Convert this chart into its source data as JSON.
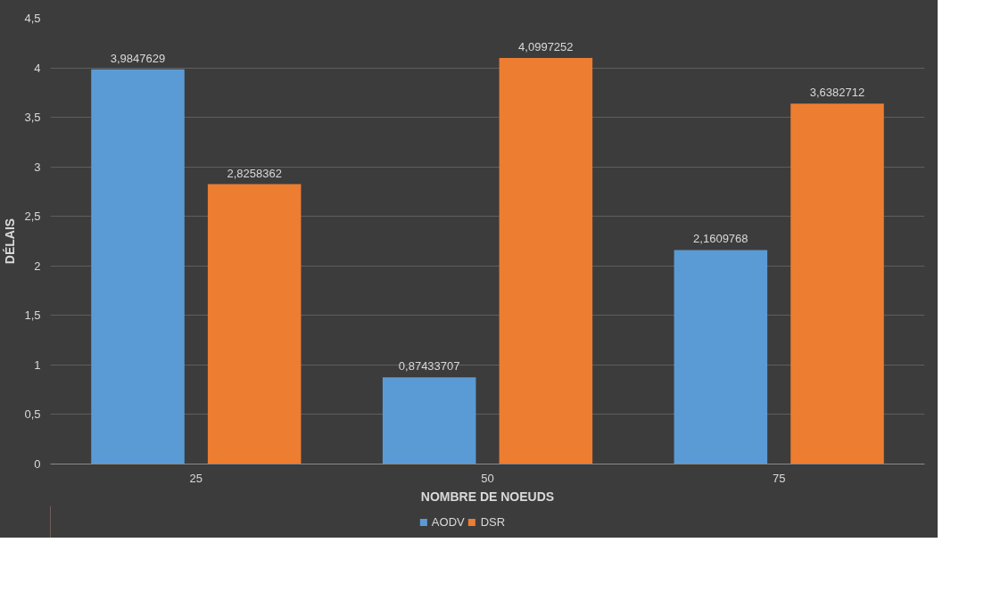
{
  "chart_data": {
    "type": "bar",
    "xlabel": "NOMBRE DE NOEUDS",
    "ylabel": "DÉLAIS",
    "categories": [
      "25",
      "50",
      "75"
    ],
    "series": [
      {
        "name": "AODV",
        "color": "#5b9bd5",
        "values": [
          3.9847629,
          0.87433707,
          2.1609768
        ],
        "value_labels": [
          "3,9847629",
          "0,87433707",
          "2,1609768"
        ]
      },
      {
        "name": "DSR",
        "color": "#ed7d31",
        "values": [
          2.8258362,
          4.0997252,
          3.6382712
        ],
        "value_labels": [
          "2,8258362",
          "4,0997252",
          "3,6382712"
        ]
      }
    ],
    "ylim": [
      0,
      4.5
    ],
    "yticks": [
      0,
      {
        "value": 0.5,
        "label": "0,5"
      },
      1,
      {
        "value": 1.5,
        "label": "1,5"
      },
      2,
      {
        "value": 2.5,
        "label": "2,5"
      },
      3,
      {
        "value": 3.5,
        "label": "3,5"
      },
      4,
      {
        "value": 4.5,
        "label": "4,5"
      }
    ],
    "grid": "y",
    "legend": "bottom"
  }
}
